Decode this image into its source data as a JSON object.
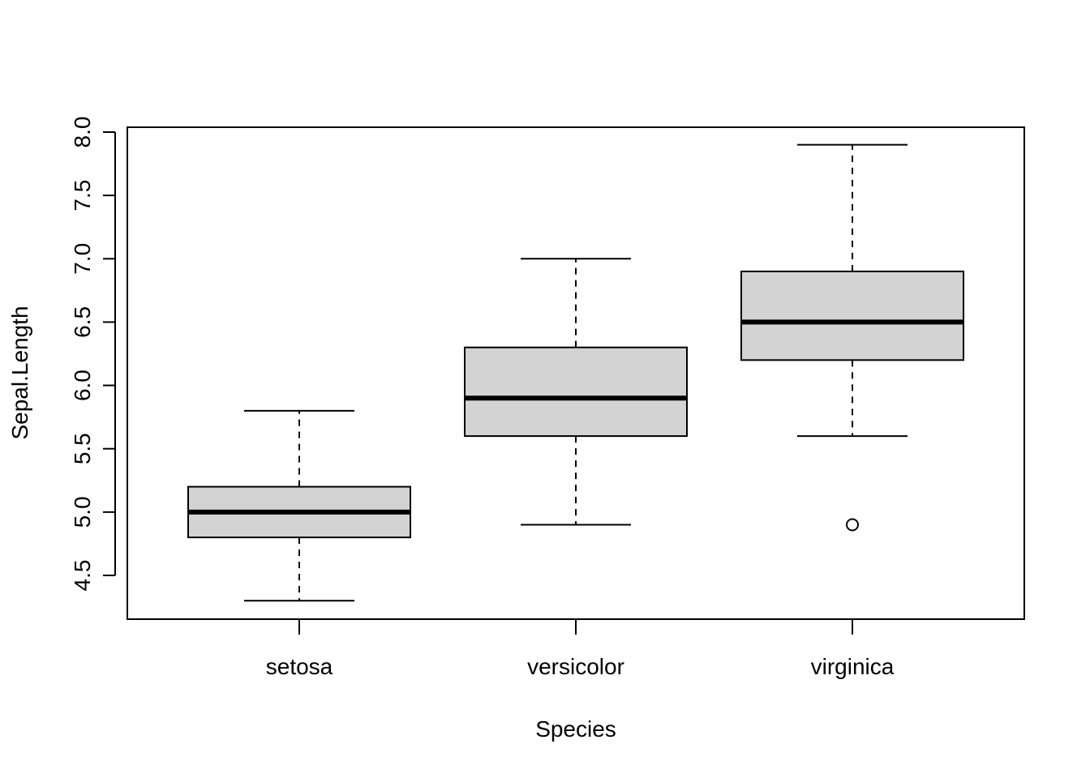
{
  "chart_data": {
    "type": "boxplot",
    "title": "",
    "xlabel": "Species",
    "ylabel": "Sepal.Length",
    "ylim": [
      4.2,
      8.05
    ],
    "y_ticks": [
      "4.5",
      "5.0",
      "5.5",
      "6.0",
      "6.5",
      "7.0",
      "7.5",
      "8.0"
    ],
    "y_tick_values": [
      4.5,
      5.0,
      5.5,
      6.0,
      6.5,
      7.0,
      7.5,
      8.0
    ],
    "categories": [
      "setosa",
      "versicolor",
      "virginica"
    ],
    "boxes": [
      {
        "category": "setosa",
        "whisker_low": 4.3,
        "q1": 4.8,
        "median": 5.0,
        "q3": 5.2,
        "whisker_high": 5.8,
        "outliers": []
      },
      {
        "category": "versicolor",
        "whisker_low": 4.9,
        "q1": 5.6,
        "median": 5.9,
        "q3": 6.3,
        "whisker_high": 7.0,
        "outliers": []
      },
      {
        "category": "virginica",
        "whisker_low": 5.6,
        "q1": 6.2,
        "median": 6.5,
        "q3": 6.9,
        "whisker_high": 7.9,
        "outliers": [
          4.9
        ]
      }
    ],
    "box_fill": "#d3d3d3",
    "line_color": "#000000",
    "grid": false,
    "legend": "none"
  }
}
